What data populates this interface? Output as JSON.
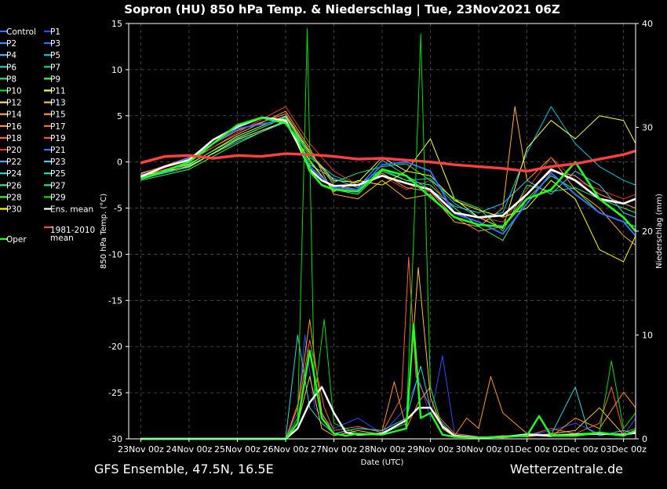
{
  "title": "Sopron  (HU)  850 hPa Temp. & Niederschlag | Tue, 23Nov2021 06Z",
  "footer": {
    "left": "GFS Ensemble, 47.5N, 16.5E",
    "right": "Wetterzentrale.de"
  },
  "chart_data": {
    "type": "line",
    "title": "Sopron  (HU)  850 hPa Temp. & Niederschlag | Tue, 23Nov2021 06Z",
    "xlabel": "Date (UTC)",
    "ylabel": "850 hPa Temp. (°C)",
    "y2label": "Niederschlag (mm)",
    "ylim": [
      -30,
      15
    ],
    "y2lim": [
      0,
      40
    ],
    "xlim": [
      -0.25,
      10.25
    ],
    "grid": true,
    "legend_position": "left",
    "x_ticks": [
      "23Nov 00z",
      "24Nov 00z",
      "25Nov 00z",
      "26Nov 00z",
      "27Nov 00z",
      "28Nov 00z",
      "29Nov 00z",
      "30Nov 00z",
      "01Dec 00z",
      "02Dec 00z",
      "03Dec 00z"
    ],
    "y_ticks": [
      15,
      10,
      5,
      0,
      -5,
      -10,
      -15,
      -20,
      -25,
      -30
    ],
    "y2_ticks": [
      40,
      30,
      20,
      10,
      0
    ],
    "legend": [
      {
        "label": "Control",
        "color": "#3a6bff"
      },
      {
        "label": "P1",
        "color": "#2a4bff"
      },
      {
        "label": "P2",
        "color": "#3c8cff"
      },
      {
        "label": "P3",
        "color": "#1e7bff"
      },
      {
        "label": "P4",
        "color": "#3cb8ff"
      },
      {
        "label": "P5",
        "color": "#00c8e0"
      },
      {
        "label": "P6",
        "color": "#20d0c0"
      },
      {
        "label": "P7",
        "color": "#00d890"
      },
      {
        "label": "P8",
        "color": "#30e070"
      },
      {
        "label": "P9",
        "color": "#40ff40"
      },
      {
        "label": "P10",
        "color": "#00e000"
      },
      {
        "label": "P11",
        "color": "#ffff40"
      },
      {
        "label": "P12",
        "color": "#ffe070"
      },
      {
        "label": "P13",
        "color": "#ffc040"
      },
      {
        "label": "P14",
        "color": "#ffb030"
      },
      {
        "label": "P15",
        "color": "#ff9820"
      },
      {
        "label": "P16",
        "color": "#ff9060"
      },
      {
        "label": "P17",
        "color": "#ff7040"
      },
      {
        "label": "P18",
        "color": "#ff6040"
      },
      {
        "label": "P19",
        "color": "#ff5030"
      },
      {
        "label": "P20",
        "color": "#e04020"
      },
      {
        "label": "P21",
        "color": "#4070ff"
      },
      {
        "label": "P22",
        "color": "#50a0ff"
      },
      {
        "label": "P23",
        "color": "#40c8ff"
      },
      {
        "label": "P24",
        "color": "#30d8d8"
      },
      {
        "label": "P25",
        "color": "#20e0a0"
      },
      {
        "label": "P26",
        "color": "#30e880"
      },
      {
        "label": "P27",
        "color": "#20f060"
      },
      {
        "label": "P28",
        "color": "#40f040"
      },
      {
        "label": "P29",
        "color": "#10e010"
      },
      {
        "label": "P30",
        "color": "#ffff00"
      },
      {
        "label": "Ens. mean",
        "color": "#ffffff"
      },
      {
        "label": "Oper",
        "color": "#20ff20"
      },
      {
        "label": "1981-2010 mean",
        "color": "#ff4040"
      }
    ],
    "temperature_series": [
      {
        "name": "Ens. mean",
        "color": "#ffffff",
        "width": 2.6,
        "x": [
          0,
          0.5,
          1,
          1.5,
          2,
          2.5,
          3,
          3.25,
          3.5,
          3.75,
          4,
          4.5,
          5,
          5.5,
          6,
          6.5,
          7,
          7.5,
          8,
          8.5,
          9,
          9.5,
          10,
          10.25
        ],
        "y": [
          -1.6,
          -0.5,
          0.2,
          2.4,
          3.8,
          4.8,
          4.5,
          2.0,
          -0.8,
          -2.0,
          -2.6,
          -2.5,
          -1.5,
          -2.3,
          -3.0,
          -5.5,
          -6.0,
          -5.8,
          -3.5,
          -0.8,
          -2.0,
          -4.0,
          -4.5,
          -4.0
        ]
      },
      {
        "name": "Oper",
        "color": "#20ff20",
        "width": 2.6,
        "x": [
          0,
          0.5,
          1,
          1.5,
          2,
          2.5,
          3,
          3.25,
          3.5,
          3.75,
          4,
          4.5,
          5,
          5.5,
          6,
          6.5,
          7,
          7.5,
          8,
          8.5,
          9,
          9.5,
          10,
          10.25
        ],
        "y": [
          -1.8,
          -1.0,
          0.0,
          2.0,
          4.0,
          4.8,
          4.2,
          2.5,
          -1.0,
          -2.5,
          -3.0,
          -3.2,
          -0.8,
          -1.5,
          -3.8,
          -6.0,
          -6.8,
          -7.0,
          -4.0,
          -3.0,
          0.0,
          -4.0,
          -6.0,
          -7.5
        ]
      },
      {
        "name": "1981-2010 mean",
        "color": "#ff4040",
        "width": 3.4,
        "x": [
          0,
          0.5,
          1,
          1.5,
          2,
          2.5,
          3,
          3.5,
          4,
          4.5,
          5,
          5.5,
          6,
          6.5,
          7,
          7.5,
          8,
          8.5,
          9,
          9.5,
          10,
          10.25
        ],
        "y": [
          -0.1,
          0.6,
          0.7,
          0.4,
          0.7,
          0.6,
          0.9,
          0.8,
          0.6,
          0.3,
          0.4,
          0.2,
          0.0,
          -0.3,
          -0.5,
          -0.7,
          -1.0,
          -0.5,
          -0.2,
          0.3,
          0.8,
          1.2
        ]
      },
      {
        "name": "Control",
        "color": "#3a6bff",
        "width": 2.0,
        "x": [
          0,
          1,
          2,
          3,
          3.5,
          4,
          4.5,
          5,
          5.5,
          6,
          6.5,
          7,
          7.5,
          8,
          8.5,
          9,
          9.5,
          10,
          10.25
        ],
        "y": [
          -1.5,
          0.4,
          3.6,
          4.6,
          -0.5,
          -2.8,
          -3.0,
          -0.3,
          0.0,
          -1.0,
          -5.6,
          -6.5,
          -7.8,
          -4.5,
          -1.2,
          -3.5,
          -5.5,
          -6.5,
          -8.0
        ]
      },
      {
        "name": "P5",
        "color": "#00c8e0",
        "width": 1.0,
        "x": [
          0,
          1,
          2,
          3,
          3.5,
          4,
          4.5,
          5,
          5.5,
          6,
          6.5,
          7,
          7.5,
          8,
          8.5,
          9,
          9.5,
          10,
          10.25
        ],
        "y": [
          -1.8,
          -0.6,
          2.5,
          4.9,
          0.5,
          -1.5,
          -2.5,
          -0.8,
          -2.0,
          -1.8,
          -4.5,
          -6.0,
          -5.5,
          1.0,
          6.0,
          2.0,
          -0.5,
          -2.0,
          -2.5
        ]
      },
      {
        "name": "P14",
        "color": "#ffb030",
        "width": 1.0,
        "x": [
          0,
          1,
          2,
          3,
          3.5,
          4,
          4.5,
          5,
          5.5,
          6,
          6.5,
          7,
          7.5,
          7.75,
          8,
          8.5,
          9,
          9.5,
          10,
          10.25
        ],
        "y": [
          -1.2,
          0.2,
          3.0,
          5.5,
          1.5,
          -3.5,
          -4.0,
          -2.0,
          -4.0,
          -3.5,
          -6.5,
          -7.0,
          -5.0,
          6.0,
          -2.0,
          0.5,
          -3.0,
          -5.0,
          -8.0,
          -9.0
        ]
      },
      {
        "name": "P11",
        "color": "#ffff40",
        "width": 1.0,
        "x": [
          0,
          1,
          2,
          3,
          3.5,
          4,
          4.5,
          5,
          5.5,
          6,
          6.5,
          7,
          7.5,
          8,
          8.5,
          9,
          9.5,
          10,
          10.25
        ],
        "y": [
          -1.4,
          -0.3,
          2.8,
          5.0,
          1.0,
          -2.0,
          -2.2,
          0.5,
          -1.0,
          2.5,
          -4.0,
          -6.0,
          -7.2,
          1.5,
          4.5,
          2.5,
          5.0,
          4.5,
          2.0
        ]
      },
      {
        "name": "P9",
        "color": "#40ff40",
        "width": 1.0,
        "x": [
          0,
          1,
          2,
          3,
          3.5,
          4,
          4.5,
          5,
          5.5,
          6,
          6.5,
          7,
          7.5,
          8,
          8.5,
          9,
          9.5,
          10,
          10.25
        ],
        "y": [
          -2.0,
          -0.8,
          2.0,
          4.5,
          0.0,
          -3.0,
          -3.5,
          -1.0,
          -2.0,
          -2.5,
          -5.0,
          -7.0,
          -8.5,
          -4.0,
          -1.5,
          -3.0,
          -5.5,
          -6.5,
          -7.0
        ]
      },
      {
        "name": "P20",
        "color": "#e04020",
        "width": 1.0,
        "x": [
          0,
          1,
          2,
          3,
          3.5,
          4,
          4.5,
          5,
          5.5,
          6,
          6.5,
          7,
          7.5,
          8,
          8.5,
          9,
          9.5,
          10,
          10.25
        ],
        "y": [
          -1.6,
          0.0,
          3.2,
          6.0,
          2.0,
          -1.0,
          -2.5,
          -1.5,
          -3.0,
          -2.0,
          -5.5,
          -6.0,
          -6.5,
          -3.0,
          0.5,
          -2.0,
          -3.0,
          -4.0,
          -3.5
        ]
      },
      {
        "name": "P23",
        "color": "#40c8ff",
        "width": 1.0,
        "x": [
          0,
          1,
          2,
          3,
          3.5,
          4,
          4.5,
          5,
          5.5,
          6,
          6.5,
          7,
          7.5,
          8,
          8.5,
          9,
          9.5,
          10,
          10.25
        ],
        "y": [
          -1.9,
          -0.4,
          2.2,
          4.3,
          -0.3,
          -1.8,
          -2.8,
          0.2,
          -1.5,
          -3.0,
          -4.8,
          -5.5,
          -4.5,
          -2.0,
          -3.5,
          -1.0,
          -2.5,
          -5.5,
          -6.0
        ]
      },
      {
        "name": "P27",
        "color": "#20f060",
        "width": 1.0,
        "x": [
          0,
          1,
          2,
          3,
          3.5,
          4,
          4.5,
          5,
          5.5,
          6,
          6.5,
          7,
          7.5,
          8,
          8.5,
          9,
          9.5,
          10,
          10.25
        ],
        "y": [
          -1.7,
          -0.2,
          2.6,
          4.8,
          0.8,
          -2.2,
          -1.2,
          -0.5,
          -0.2,
          -2.0,
          -4.0,
          -5.0,
          -7.5,
          -2.5,
          -3.2,
          -2.8,
          -4.0,
          -5.0,
          -5.5
        ]
      },
      {
        "name": "P16",
        "color": "#ff9060",
        "width": 1.0,
        "x": [
          0,
          1,
          2,
          3,
          3.5,
          4,
          4.5,
          5,
          5.5,
          6,
          6.5,
          7,
          7.5,
          8,
          8.5,
          9,
          9.5,
          10,
          10.25
        ],
        "y": [
          -1.3,
          0.5,
          3.4,
          5.2,
          1.2,
          -2.5,
          -3.0,
          -1.2,
          -2.8,
          -3.2,
          -6.0,
          -7.5,
          -7.0,
          -3.5,
          -1.0,
          -1.5,
          -3.5,
          -4.5,
          -5.0
        ]
      },
      {
        "name": "P30",
        "color": "#ffff00",
        "width": 1.0,
        "x": [
          0,
          1,
          2,
          3,
          3.5,
          4,
          4.5,
          5,
          5.5,
          6,
          6.5,
          7,
          7.5,
          8,
          8.5,
          9,
          9.5,
          10,
          10.25
        ],
        "y": [
          -1.5,
          -0.5,
          2.4,
          4.4,
          0.2,
          -3.2,
          -2.0,
          -2.5,
          -1.0,
          -1.5,
          -4.2,
          -5.2,
          -6.0,
          -5.0,
          -2.0,
          -4.0,
          -9.5,
          -10.8,
          -8.0
        ]
      }
    ],
    "precipitation_series": [
      {
        "name": "Ens. mean",
        "color": "#ffffff",
        "width": 2.4,
        "x": [
          0,
          3.0,
          3.25,
          3.5,
          3.75,
          4.0,
          4.25,
          4.5,
          5.0,
          5.5,
          5.75,
          6.0,
          6.25,
          6.5,
          7.0,
          7.5,
          8.0,
          8.5,
          9.0,
          9.5,
          10.0,
          10.25
        ],
        "y": [
          0,
          0,
          1.0,
          3.5,
          5.0,
          2.5,
          0.6,
          0.4,
          0.5,
          1.8,
          3.0,
          3.0,
          1.2,
          0.3,
          0.1,
          0.2,
          0.4,
          0.3,
          0.4,
          0.5,
          0.4,
          0.6
        ]
      },
      {
        "name": "Oper",
        "color": "#20ff20",
        "width": 2.4,
        "x": [
          0,
          3.0,
          3.25,
          3.5,
          3.75,
          4.0,
          4.25,
          4.5,
          5.0,
          5.5,
          5.65,
          5.8,
          6.0,
          6.25,
          6.5,
          7.0,
          7.5,
          8.0,
          8.25,
          8.5,
          9.0,
          9.5,
          10.0,
          10.25
        ],
        "y": [
          0,
          0,
          1.5,
          8.5,
          2.0,
          0.5,
          0.3,
          0.5,
          0.4,
          1.0,
          11.0,
          2.0,
          2.5,
          0.4,
          0.2,
          0.1,
          0.2,
          0.3,
          2.2,
          0.3,
          0.3,
          0.6,
          0.3,
          0.8
        ]
      },
      {
        "name": "P1",
        "color": "#2a4bff",
        "width": 1.0,
        "x": [
          0,
          3.0,
          3.25,
          3.4,
          3.6,
          4.0,
          4.5,
          5.0,
          5.5,
          5.75,
          6.0,
          6.25,
          6.5,
          7.0,
          7.5,
          8.0,
          8.5,
          9.0,
          9.5,
          10.0,
          10.25
        ],
        "y": [
          0,
          0,
          2.5,
          10.0,
          3.0,
          1.0,
          2.0,
          0.5,
          3.0,
          6.0,
          2.0,
          8.0,
          0.5,
          0.2,
          0.1,
          0.3,
          0.8,
          1.5,
          0.5,
          0.3,
          2.0
        ]
      },
      {
        "name": "P15",
        "color": "#ff9820",
        "width": 1.0,
        "x": [
          0,
          3.0,
          3.25,
          3.5,
          3.75,
          4.0,
          4.5,
          5.0,
          5.25,
          5.5,
          5.75,
          6.0,
          6.25,
          6.5,
          6.75,
          7.0,
          7.25,
          7.5,
          8.0,
          8.5,
          9.0,
          9.5,
          10.0,
          10.25
        ],
        "y": [
          0,
          0,
          3.0,
          11.5,
          2.5,
          0.5,
          1.0,
          0.8,
          5.5,
          1.0,
          3.5,
          5.0,
          1.0,
          0.3,
          2.0,
          1.0,
          6.0,
          2.5,
          0.5,
          0.2,
          2.0,
          1.0,
          4.5,
          3.0
        ]
      },
      {
        "name": "P18",
        "color": "#ff6040",
        "width": 1.0,
        "x": [
          0,
          3.0,
          3.3,
          3.5,
          3.8,
          4.0,
          4.5,
          5.0,
          5.4,
          5.55,
          5.7,
          6.0,
          6.5,
          7.0,
          7.5,
          8.0,
          8.5,
          9.0,
          9.5,
          9.75,
          10.0,
          10.25
        ],
        "y": [
          0,
          0,
          4.0,
          9.5,
          3.0,
          0.8,
          1.2,
          0.6,
          4.0,
          17.5,
          6.0,
          3.0,
          0.5,
          0.2,
          0.1,
          0.3,
          1.0,
          0.5,
          1.5,
          5.0,
          0.6,
          1.0
        ]
      },
      {
        "name": "P24",
        "color": "#30d8d8",
        "width": 1.0,
        "x": [
          0,
          3.0,
          3.25,
          3.5,
          3.75,
          4.0,
          4.5,
          5.0,
          5.5,
          5.8,
          6.0,
          6.25,
          6.5,
          7.0,
          7.5,
          8.0,
          8.5,
          9.0,
          9.25,
          9.5,
          10.0,
          10.25
        ],
        "y": [
          0,
          0,
          10.0,
          3.0,
          1.5,
          0.5,
          1.0,
          0.8,
          2.0,
          7.0,
          3.0,
          1.5,
          0.3,
          0.1,
          0.2,
          0.5,
          0.4,
          5.0,
          1.0,
          0.3,
          0.8,
          0.5
        ]
      },
      {
        "name": "P10",
        "color": "#00e000",
        "width": 1.0,
        "x": [
          0,
          3.0,
          3.25,
          3.45,
          3.6,
          3.8,
          4.0,
          4.5,
          5.0,
          5.5,
          5.65,
          5.8,
          6.0,
          6.25,
          6.5,
          7.0,
          7.5,
          8.0,
          8.5,
          9.0,
          9.5,
          9.75,
          10.0,
          10.25
        ],
        "y": [
          0,
          0,
          2.0,
          39.5,
          4.0,
          11.5,
          1.5,
          0.5,
          0.5,
          1.5,
          19.0,
          39.0,
          5.0,
          1.0,
          0.3,
          0.1,
          0.2,
          0.3,
          0.4,
          0.5,
          0.6,
          7.5,
          1.0,
          2.5
        ]
      },
      {
        "name": "P13",
        "color": "#ffc040",
        "width": 1.0,
        "x": [
          0,
          3.0,
          3.25,
          3.5,
          3.75,
          4.0,
          4.5,
          5.0,
          5.5,
          5.75,
          6.0,
          6.25,
          6.5,
          7.0,
          7.5,
          8.0,
          8.5,
          9.0,
          9.5,
          10.0,
          10.25
        ],
        "y": [
          0,
          0,
          1.5,
          6.0,
          1.0,
          0.3,
          0.8,
          0.4,
          1.0,
          16.5,
          4.0,
          1.0,
          0.2,
          0.1,
          0.3,
          0.2,
          0.5,
          0.8,
          3.0,
          0.4,
          0.5
        ]
      }
    ]
  }
}
